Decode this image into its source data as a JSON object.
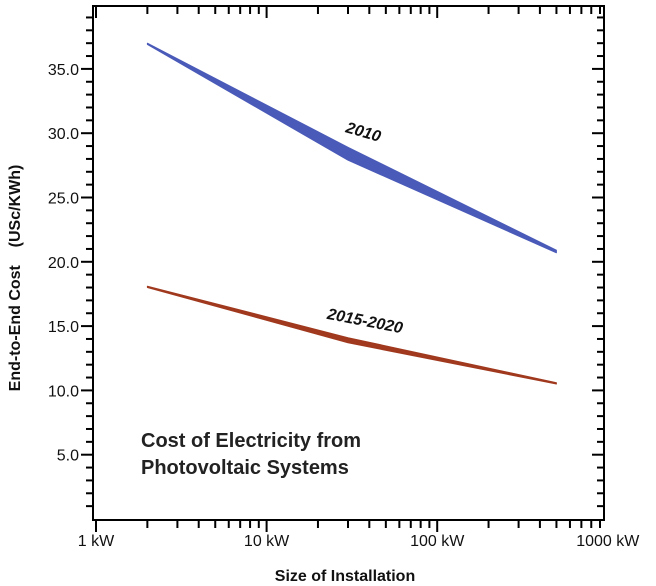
{
  "chart_data": {
    "type": "area",
    "title_lines": [
      "Cost of Electricity from",
      "Photovoltaic Systems"
    ],
    "xlabel": "Size of Installation",
    "ylabel": "End-to-End Cost    (USc/KWh)",
    "x_scale": "log",
    "xlim_kw": [
      1,
      1000
    ],
    "ylim": [
      0,
      40
    ],
    "x_ticks": [
      {
        "value": 1,
        "label": "1 kW"
      },
      {
        "value": 10,
        "label": "10 kW"
      },
      {
        "value": 100,
        "label": "100 kW"
      },
      {
        "value": 1000,
        "label": "1000 kW"
      }
    ],
    "y_ticks": [
      {
        "value": 5,
        "label": "5.0"
      },
      {
        "value": 10,
        "label": "10.0"
      },
      {
        "value": 15,
        "label": "15.0"
      },
      {
        "value": 20,
        "label": "20.0"
      },
      {
        "value": 25,
        "label": "25.0"
      },
      {
        "value": 30,
        "label": "30.0"
      },
      {
        "value": 35,
        "label": "35.0"
      }
    ],
    "grid": false,
    "series": [
      {
        "name": "2010",
        "color": "#4a5ab8",
        "x_kw": [
          2,
          30,
          500
        ],
        "y_upper": [
          37.0,
          28.9,
          20.9
        ],
        "y_lower": [
          36.9,
          27.9,
          20.7
        ]
      },
      {
        "name": "2015-2020",
        "color": "#a0391e",
        "x_kw": [
          2,
          30,
          500
        ],
        "y_upper": [
          18.1,
          14.1,
          10.6
        ],
        "y_lower": [
          18.0,
          13.7,
          10.5
        ]
      }
    ]
  }
}
